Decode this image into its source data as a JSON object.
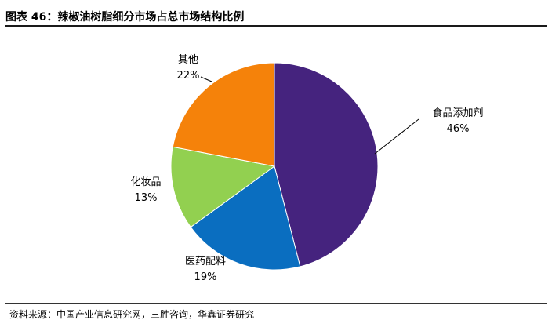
{
  "header": {
    "title": "图表 46：辣椒油树脂细分市场占总市场结构比例"
  },
  "chart_data": {
    "type": "pie",
    "title": "",
    "slices": [
      {
        "label": "食品添加剂",
        "value": 46,
        "value_label": "46%",
        "color": "#45237E"
      },
      {
        "label": "医药配料",
        "value": 19,
        "value_label": "19%",
        "color": "#0A6EC0"
      },
      {
        "label": "化妆品",
        "value": 13,
        "value_label": "13%",
        "color": "#92D050"
      },
      {
        "label": "其他",
        "value": 22,
        "value_label": "22%",
        "color": "#F5820A"
      }
    ],
    "start": "12 o'clock",
    "direction": "clockwise",
    "legend": "none"
  },
  "footer": {
    "source": "资料来源：中国产业信息研究网，三胜咨询，华鑫证券研究"
  }
}
